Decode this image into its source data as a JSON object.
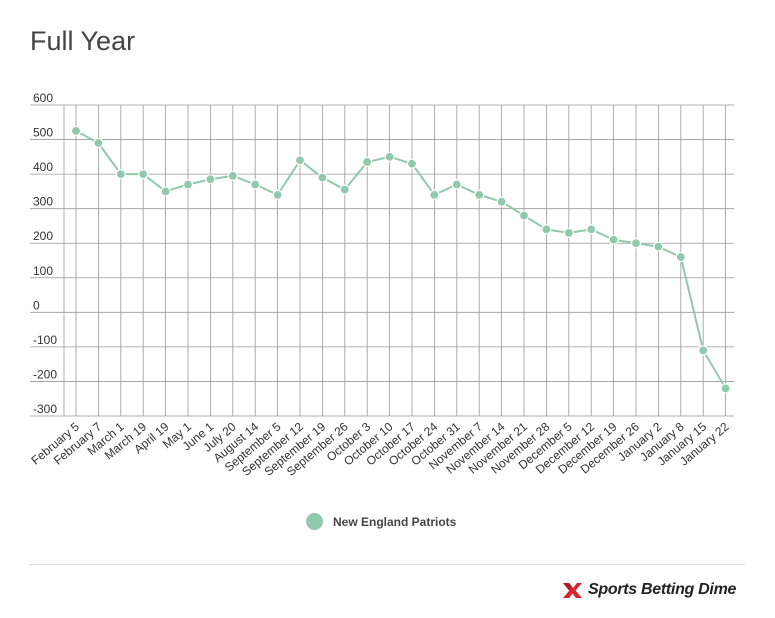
{
  "title": "Full Year",
  "legend": {
    "label": "New England Patriots"
  },
  "brand": {
    "text": "Sports Betting Dime"
  },
  "colors": {
    "series": "#91c9ad",
    "grid": "#999999",
    "brand_red": "#d9232e"
  },
  "chart_data": {
    "type": "line",
    "title": "Full Year",
    "xlabel": "",
    "ylabel": "",
    "ylim": [
      -300,
      600
    ],
    "yticks": [
      600,
      500,
      400,
      300,
      200,
      100,
      0,
      -100,
      -200,
      -300
    ],
    "grid": true,
    "legend_position": "bottom-center",
    "categories": [
      "February 5",
      "February 7",
      "March 1",
      "March 19",
      "April 19",
      "May 1",
      "June 1",
      "July 20",
      "August 14",
      "September 5",
      "September 12",
      "September 19",
      "September 26",
      "October 3",
      "October 10",
      "October 17",
      "October 24",
      "October 31",
      "November 7",
      "November 14",
      "November 21",
      "November 28",
      "December 5",
      "December 12",
      "December 19",
      "December 26",
      "January 2",
      "January 8",
      "January 15",
      "January 22"
    ],
    "series": [
      {
        "name": "New England Patriots",
        "values": [
          525,
          490,
          400,
          400,
          350,
          370,
          385,
          395,
          370,
          340,
          440,
          390,
          355,
          435,
          450,
          430,
          340,
          370,
          340,
          320,
          280,
          240,
          230,
          240,
          210,
          200,
          190,
          160,
          -110,
          -220
        ]
      }
    ]
  }
}
